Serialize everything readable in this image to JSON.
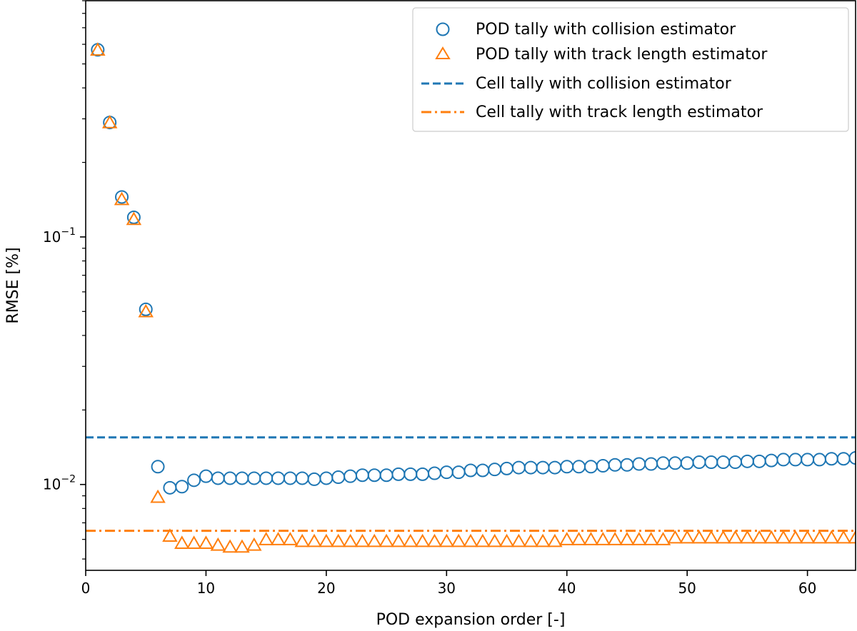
{
  "chart_data": {
    "type": "scatter",
    "xlabel": "POD expansion order [-]",
    "ylabel": "RMSE [%]",
    "x_scale": "linear",
    "y_scale": "log",
    "xlim": [
      0,
      64
    ],
    "ylim": [
      0.0045,
      0.9
    ],
    "x_ticks": [
      0,
      10,
      20,
      30,
      40,
      50,
      60
    ],
    "x_tick_labels": [
      "0",
      "10",
      "20",
      "30",
      "40",
      "50",
      "60"
    ],
    "y_major_ticks": [
      {
        "value": 0.1,
        "base": "10",
        "exp": "−1"
      },
      {
        "value": 0.01,
        "base": "10",
        "exp": "−2"
      }
    ],
    "legend_position": "top-right",
    "series": [
      {
        "name": "POD tally with collision estimator",
        "marker": "circle",
        "color": "#1f77b4",
        "x": [
          1,
          2,
          3,
          4,
          5,
          6,
          7,
          8,
          9,
          10,
          11,
          12,
          13,
          14,
          15,
          16,
          17,
          18,
          19,
          20,
          21,
          22,
          23,
          24,
          25,
          26,
          27,
          28,
          29,
          30,
          31,
          32,
          33,
          34,
          35,
          36,
          37,
          38,
          39,
          40,
          41,
          42,
          43,
          44,
          45,
          46,
          47,
          48,
          49,
          50,
          51,
          52,
          53,
          54,
          55,
          56,
          57,
          58,
          59,
          60,
          61,
          62,
          63,
          64
        ],
        "values": [
          0.57,
          0.29,
          0.145,
          0.12,
          0.051,
          0.0118,
          0.0097,
          0.0098,
          0.0104,
          0.0108,
          0.0106,
          0.0106,
          0.0106,
          0.0106,
          0.0106,
          0.0106,
          0.0106,
          0.0106,
          0.0105,
          0.0106,
          0.0107,
          0.0108,
          0.0109,
          0.0109,
          0.0109,
          0.011,
          0.011,
          0.011,
          0.0111,
          0.0112,
          0.0112,
          0.0114,
          0.0114,
          0.0115,
          0.0116,
          0.0117,
          0.0117,
          0.0117,
          0.0117,
          0.0118,
          0.0118,
          0.0118,
          0.0119,
          0.012,
          0.012,
          0.0121,
          0.0121,
          0.0122,
          0.0122,
          0.0122,
          0.0123,
          0.0123,
          0.0123,
          0.0123,
          0.0124,
          0.0124,
          0.0125,
          0.0126,
          0.0126,
          0.0126,
          0.0126,
          0.0127,
          0.0127,
          0.0128
        ]
      },
      {
        "name": "POD tally with track length estimator",
        "marker": "triangle",
        "color": "#ff7f0e",
        "x": [
          1,
          2,
          3,
          4,
          5,
          6,
          7,
          8,
          9,
          10,
          11,
          12,
          13,
          14,
          15,
          16,
          17,
          18,
          19,
          20,
          21,
          22,
          23,
          24,
          25,
          26,
          27,
          28,
          29,
          30,
          31,
          32,
          33,
          34,
          35,
          36,
          37,
          38,
          39,
          40,
          41,
          42,
          43,
          44,
          45,
          46,
          47,
          48,
          49,
          50,
          51,
          52,
          53,
          54,
          55,
          56,
          57,
          58,
          59,
          60,
          61,
          62,
          63,
          64
        ],
        "values": [
          0.57,
          0.29,
          0.142,
          0.118,
          0.05,
          0.0089,
          0.0062,
          0.0058,
          0.0058,
          0.0058,
          0.0057,
          0.0056,
          0.0056,
          0.0057,
          0.006,
          0.006,
          0.006,
          0.0059,
          0.0059,
          0.0059,
          0.0059,
          0.0059,
          0.0059,
          0.0059,
          0.0059,
          0.0059,
          0.0059,
          0.0059,
          0.0059,
          0.0059,
          0.0059,
          0.0059,
          0.0059,
          0.0059,
          0.0059,
          0.0059,
          0.0059,
          0.0059,
          0.0059,
          0.006,
          0.006,
          0.006,
          0.006,
          0.006,
          0.006,
          0.006,
          0.006,
          0.006,
          0.0061,
          0.0061,
          0.0061,
          0.0061,
          0.0061,
          0.0061,
          0.0061,
          0.0061,
          0.0061,
          0.0061,
          0.0061,
          0.0061,
          0.0061,
          0.0061,
          0.0061,
          0.0061
        ]
      },
      {
        "name": "Cell tally with collision estimator",
        "style": "dashed-line",
        "color": "#1f77b4",
        "y": 0.0155
      },
      {
        "name": "Cell tally with track length estimator",
        "style": "dashdot-line",
        "color": "#ff7f0e",
        "y": 0.0065
      }
    ]
  }
}
